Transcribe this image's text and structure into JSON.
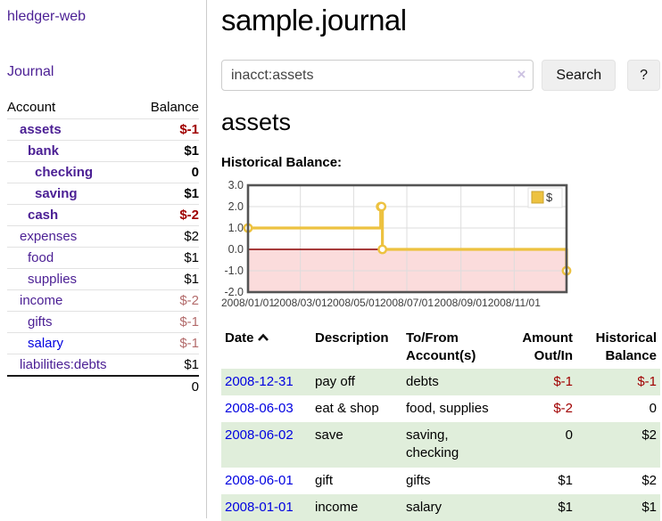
{
  "app": {
    "title": "hledger-web"
  },
  "sidebar": {
    "journal_link": "Journal",
    "accounts": {
      "headers": [
        "Account",
        "Balance"
      ],
      "rows": [
        {
          "name": "assets",
          "balance": "$-1"
        },
        {
          "name": "bank",
          "balance": "$1"
        },
        {
          "name": "checking",
          "balance": "0"
        },
        {
          "name": "saving",
          "balance": "$1"
        },
        {
          "name": "cash",
          "balance": "$-2"
        },
        {
          "name": "expenses",
          "balance": "$2"
        },
        {
          "name": "food",
          "balance": "$1"
        },
        {
          "name": "supplies",
          "balance": "$1"
        },
        {
          "name": "income",
          "balance": "$-2"
        },
        {
          "name": "gifts",
          "balance": "$-1"
        },
        {
          "name": "salary",
          "balance": "$-1"
        },
        {
          "name": "liabilities:debts",
          "balance": "$1"
        }
      ],
      "total": "0"
    }
  },
  "main": {
    "title": "sample.journal",
    "search": {
      "value": "inacct:assets",
      "clear_icon": "×",
      "search_label": "Search",
      "help_label": "?"
    },
    "account_heading": "assets",
    "chart_heading": "Historical Balance:"
  },
  "chart_data": {
    "type": "line",
    "step": true,
    "title": "Historical Balance",
    "legend": [
      {
        "label": "$",
        "color": "#edc240"
      }
    ],
    "legend_position": "top-right",
    "x_start": "2008-01-01",
    "x_end": "2008-12-31",
    "ylim": [
      -2,
      3
    ],
    "yticks": [
      {
        "value": 3,
        "label": "3.0"
      },
      {
        "value": 2,
        "label": "2.0"
      },
      {
        "value": 1,
        "label": "1.0"
      },
      {
        "value": 0,
        "label": "0.0"
      },
      {
        "value": -1,
        "label": "-1.0"
      },
      {
        "value": -2,
        "label": "-2.0"
      }
    ],
    "xticks": [
      {
        "date": "2008-01-01",
        "label": "2008/01/01"
      },
      {
        "date": "2008-03-01",
        "label": "2008/03/01"
      },
      {
        "date": "2008-05-01",
        "label": "2008/05/01"
      },
      {
        "date": "2008-07-01",
        "label": "2008/07/01"
      },
      {
        "date": "2008-09-01",
        "label": "2008/09/01"
      },
      {
        "date": "2008-11-01",
        "label": "2008/11/01"
      }
    ],
    "series": [
      {
        "name": "$",
        "color": "#edc240",
        "points": [
          {
            "date": "2008-01-01",
            "value": 1
          },
          {
            "date": "2008-06-01",
            "value": 2
          },
          {
            "date": "2008-06-02",
            "value": 2
          },
          {
            "date": "2008-06-03",
            "value": 0
          },
          {
            "date": "2008-12-31",
            "value": -1
          }
        ]
      }
    ],
    "grid": true,
    "grid_color": "#dddddd",
    "border_color": "#545454",
    "negative_region_fill": "#fbdcdc",
    "zero_line_color": "#8b0000"
  },
  "register": {
    "headers": [
      "Date",
      "Description",
      "To/From Account(s)",
      "Amount Out/In",
      "Historical Balance"
    ],
    "rows": [
      {
        "date": "2008-12-31",
        "description": "pay off",
        "accounts": "debts",
        "amount": "$-1",
        "balance": "$-1"
      },
      {
        "date": "2008-06-03",
        "description": "eat & shop",
        "accounts": "food, supplies",
        "amount": "$-2",
        "balance": "0"
      },
      {
        "date": "2008-06-02",
        "description": "save",
        "accounts": "saving, checking",
        "amount": "0",
        "balance": "$2"
      },
      {
        "date": "2008-06-01",
        "description": "gift",
        "accounts": "gifts",
        "amount": "$1",
        "balance": "$2"
      },
      {
        "date": "2008-01-01",
        "description": "income",
        "accounts": "salary",
        "amount": "$1",
        "balance": "$1"
      }
    ]
  }
}
